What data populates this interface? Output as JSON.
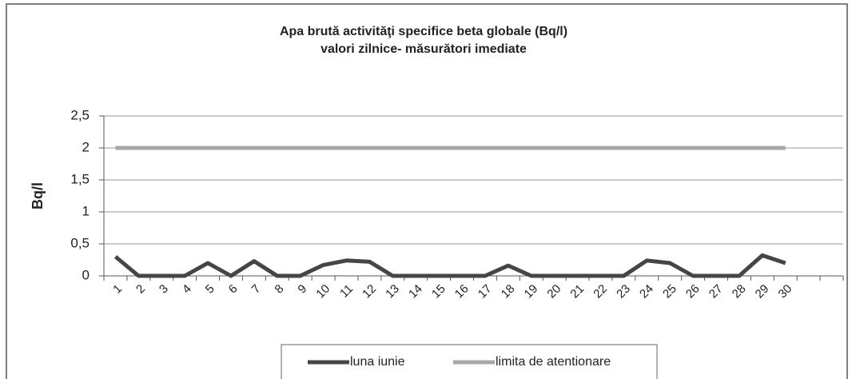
{
  "chart_data": {
    "type": "line",
    "title": "Apa brută activităţi specifice beta globale (Bq/l)",
    "subtitle": "valori zilnice- măsurători imediate",
    "y_label": "Bq/l",
    "categories": [
      "1",
      "2",
      "3",
      "4",
      "5",
      "6",
      "7",
      "8",
      "9",
      "10",
      "11",
      "12",
      "13",
      "14",
      "15",
      "16",
      "17",
      "18",
      "19",
      "20",
      "21",
      "22",
      "23",
      "24",
      "25",
      "26",
      "27",
      "28",
      "29",
      "30",
      null,
      null
    ],
    "series": [
      {
        "name": "luna iunie",
        "color": "#454545",
        "values": [
          0.3,
          0,
          0,
          0,
          0.2,
          0,
          0.23,
          0,
          0,
          0.17,
          0.24,
          0.22,
          0,
          0,
          0,
          0,
          0,
          0.16,
          0,
          0,
          0,
          0,
          0,
          0.24,
          0.2,
          0,
          0,
          0,
          0.32,
          0.2,
          null,
          null
        ]
      },
      {
        "name": "limita de atentionare",
        "color": "#a8a8a8",
        "values": [
          2,
          2,
          2,
          2,
          2,
          2,
          2,
          2,
          2,
          2,
          2,
          2,
          2,
          2,
          2,
          2,
          2,
          2,
          2,
          2,
          2,
          2,
          2,
          2,
          2,
          2,
          2,
          2,
          2,
          2,
          null,
          null
        ]
      }
    ],
    "ylim": [
      0,
      2.5
    ],
    "yticks": [
      0,
      {
        "value": 0.5,
        "label": "0,5"
      },
      1,
      {
        "value": 1.5,
        "label": "1,5"
      },
      2,
      {
        "value": 2.5,
        "label": "2,5"
      }
    ],
    "grid": true,
    "legend": "bottom"
  }
}
